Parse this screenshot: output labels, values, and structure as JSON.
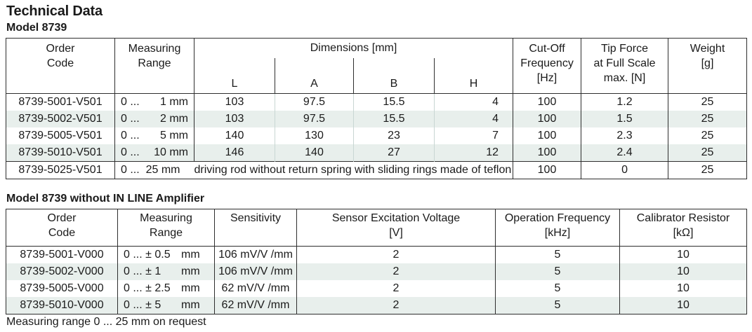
{
  "title": "Technical Data",
  "model1": {
    "heading": "Model 8739",
    "headers": {
      "order_code": [
        "Order",
        "Code"
      ],
      "measuring_range": [
        "Measuring",
        "Range"
      ],
      "dimensions": "Dimensions [mm]",
      "dim_cols": [
        "L",
        "A",
        "B",
        "H"
      ],
      "cutoff": [
        "Cut-Off",
        "Frequency",
        "[Hz]"
      ],
      "tip_force": [
        "Tip Force",
        "at Full Scale",
        "max. [N]"
      ],
      "weight": [
        "Weight",
        "[g]"
      ]
    },
    "rows": [
      {
        "code": "8739-5001-V501",
        "range_a": "0 ...",
        "range_b": "1 mm",
        "L": "103",
        "A": "97.5",
        "B": "15.5",
        "H": "4",
        "cutoff": "100",
        "tip": "1.2",
        "weight": "25"
      },
      {
        "code": "8739-5002-V501",
        "range_a": "0 ...",
        "range_b": "2 mm",
        "L": "103",
        "A": "97.5",
        "B": "15.5",
        "H": "4",
        "cutoff": "100",
        "tip": "1.5",
        "weight": "25"
      },
      {
        "code": "8739-5005-V501",
        "range_a": "0 ...",
        "range_b": "5 mm",
        "L": "140",
        "A": "130",
        "B": "23",
        "H": "7",
        "cutoff": "100",
        "tip": "2.3",
        "weight": "25"
      },
      {
        "code": "8739-5010-V501",
        "range_a": "0 ...",
        "range_b": "10 mm",
        "L": "146",
        "A": "140",
        "B": "27",
        "H": "12",
        "cutoff": "100",
        "tip": "2.4",
        "weight": "25"
      }
    ],
    "special_row": {
      "code": "8739-5025-V501",
      "range": "0 ...  25 mm",
      "note": "driving rod without return spring with sliding rings made of teflon",
      "cutoff": "100",
      "tip": "0",
      "weight": "25"
    }
  },
  "model2": {
    "heading": "Model 8739 without IN LINE Amplifier",
    "headers": {
      "order_code": [
        "Order",
        "Code"
      ],
      "measuring_range": [
        "Measuring",
        "Range"
      ],
      "sensitivity": "Sensitivity",
      "excitation": [
        "Sensor Excitation Voltage",
        "[V]"
      ],
      "op_freq": [
        "Operation Frequency",
        "[kHz]"
      ],
      "calibrator": [
        "Calibrator Resistor",
        "[kΩ]"
      ]
    },
    "rows": [
      {
        "code": "8739-5001-V000",
        "range_a": "0 ... ± 0.5",
        "range_unit": "mm",
        "sens": "106 mV/V /mm",
        "exc": "2",
        "freq": "5",
        "cal": "10"
      },
      {
        "code": "8739-5002-V000",
        "range_a": "0 ... ± 1",
        "range_unit": "mm",
        "sens": "106 mV/V /mm",
        "exc": "2",
        "freq": "5",
        "cal": "10"
      },
      {
        "code": "8739-5005-V000",
        "range_a": "0 ... ± 2.5",
        "range_unit": "mm",
        "sens": "62 mV/V /mm",
        "exc": "2",
        "freq": "5",
        "cal": "10"
      },
      {
        "code": "8739-5010-V000",
        "range_a": "0 ... ± 5",
        "range_unit": "mm",
        "sens": "62 mV/V /mm",
        "exc": "2",
        "freq": "5",
        "cal": "10"
      }
    ]
  },
  "footnote": "Measuring range 0 ... 25 mm on request",
  "colors": {
    "row_alt": "#e8efec",
    "border": "#2e2e2e"
  }
}
